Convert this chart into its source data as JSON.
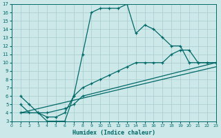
{
  "xlabel": "Humidex (Indice chaleur)",
  "bg_color": "#cce8e8",
  "grid_color": "#a8cccc",
  "line_color": "#006868",
  "line1_x": [
    1,
    2,
    3,
    4,
    5,
    6,
    7,
    8,
    9,
    10,
    11,
    12,
    13,
    14,
    15,
    16,
    17,
    18,
    19,
    20,
    21,
    22,
    23
  ],
  "line1_y": [
    6,
    5,
    4,
    3,
    3,
    3,
    6,
    11,
    16,
    16.5,
    16.5,
    16.5,
    17,
    13.5,
    14.5,
    14,
    13,
    12,
    12,
    10,
    10,
    10,
    10
  ],
  "line2_x": [
    1,
    2,
    3,
    4,
    5,
    6,
    7,
    8,
    9,
    10,
    11,
    12,
    13,
    14,
    15,
    16,
    17,
    18,
    19,
    20,
    21,
    22,
    23
  ],
  "line2_y": [
    5,
    4,
    4,
    3.5,
    3.5,
    4,
    6,
    7,
    7.5,
    8,
    8.5,
    9,
    9.5,
    10,
    10,
    10,
    10,
    11,
    11.5,
    11.5,
    10,
    10,
    10
  ],
  "line3_x": [
    1,
    4,
    6,
    7,
    8,
    23
  ],
  "line3_y": [
    4,
    4,
    4.5,
    5,
    6,
    10
  ],
  "line4_x": [
    1,
    23
  ],
  "line4_y": [
    4,
    9.5
  ],
  "xlim": [
    0,
    23
  ],
  "ylim": [
    3,
    17
  ],
  "xticks": [
    0,
    1,
    2,
    3,
    4,
    5,
    6,
    7,
    8,
    9,
    10,
    11,
    12,
    13,
    14,
    15,
    16,
    17,
    18,
    19,
    20,
    21,
    22,
    23
  ],
  "yticks": [
    3,
    4,
    5,
    6,
    7,
    8,
    9,
    10,
    11,
    12,
    13,
    14,
    15,
    16,
    17
  ]
}
